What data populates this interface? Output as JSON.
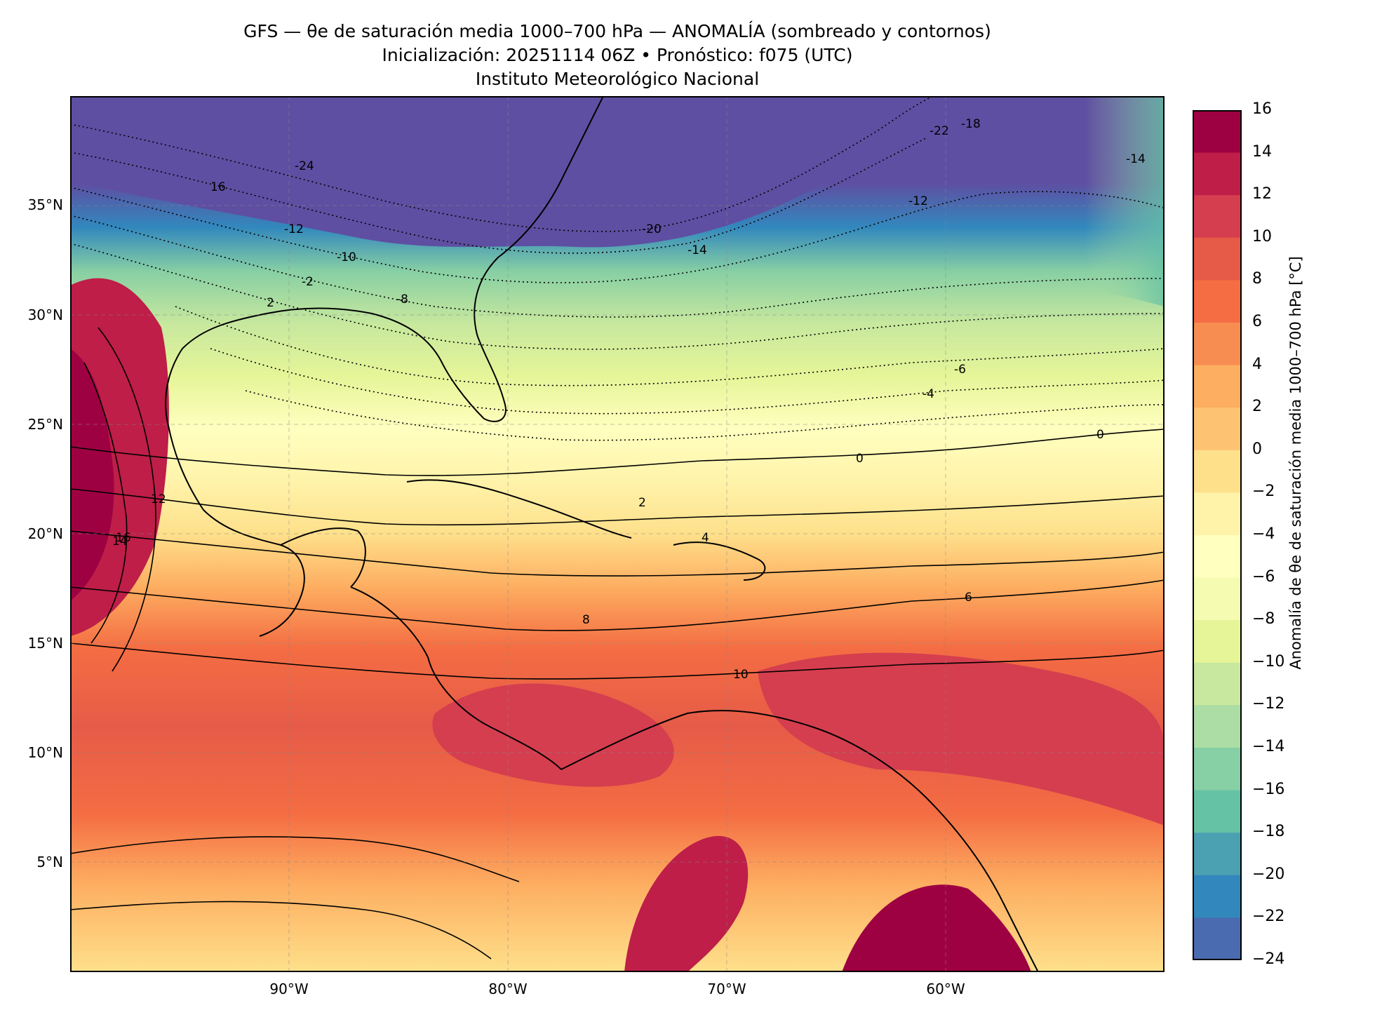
{
  "title": {
    "line1": "GFS — θe de saturación media 1000–700 hPa — ANOMALÍA (sombreado y contornos)",
    "line2": "Inicialización: 20251114 06Z   •   Pronóstico: f075 (UTC)",
    "line3": "Instituto Meteorológico Nacional"
  },
  "map": {
    "lat_ticks": [
      "35°N",
      "30°N",
      "25°N",
      "20°N",
      "15°N",
      "10°N",
      "5°N"
    ],
    "lon_ticks": [
      "90°W",
      "80°W",
      "70°W",
      "60°W"
    ],
    "extent": {
      "lon_min": -100,
      "lon_max": -50,
      "lat_min": 0,
      "lat_max": 40
    },
    "contour_labels": [
      "-24",
      "16",
      "-12",
      "-10",
      "-8",
      "2",
      "-20",
      "-14",
      "-12",
      "-22",
      "-18",
      "-14",
      "-6",
      "-4",
      "0",
      "0",
      "2",
      "4",
      "6",
      "8",
      "10",
      "12",
      "14",
      "16",
      "-2"
    ]
  },
  "colorbar": {
    "label": "Anomalía de θe de saturación media 1000–700 hPa [°C]",
    "ticks": [
      "16",
      "14",
      "12",
      "10",
      "8",
      "6",
      "4",
      "2",
      "0",
      "−2",
      "−4",
      "−6",
      "−8",
      "−10",
      "−12",
      "−14",
      "−16",
      "−18",
      "−20",
      "−22",
      "−24"
    ],
    "colors": [
      "#9e0142",
      "#be1e48",
      "#d53e4f",
      "#e65b48",
      "#f46d43",
      "#f88d52",
      "#fdae61",
      "#fdc373",
      "#fee08b",
      "#fff3aa",
      "#ffffbf",
      "#f5fbb0",
      "#e6f598",
      "#c7e89e",
      "#abdda4",
      "#87cfa4",
      "#66c2a5",
      "#4ba0b1",
      "#3288bd",
      "#4a6bb0",
      "#5e4fa2"
    ]
  }
}
